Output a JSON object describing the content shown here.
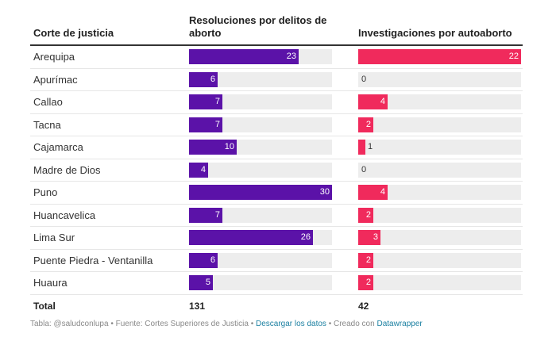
{
  "chart_data": {
    "type": "table",
    "headers": {
      "name": "Corte de justicia",
      "res": "Resoluciones por delitos de aborto",
      "inv": "Investigaciones por autoaborto"
    },
    "scale": {
      "res_max": 30,
      "inv_max": 22
    },
    "colors": {
      "res": "#5b12a8",
      "inv": "#f02a5c",
      "track": "#ededed"
    },
    "rows": [
      {
        "name": "Arequipa",
        "res": 23,
        "inv": 22
      },
      {
        "name": "Apurímac",
        "res": 6,
        "inv": 0
      },
      {
        "name": "Callao",
        "res": 7,
        "inv": 4
      },
      {
        "name": "Tacna",
        "res": 7,
        "inv": 2
      },
      {
        "name": "Cajamarca",
        "res": 10,
        "inv": 1
      },
      {
        "name": "Madre de Dios",
        "res": 4,
        "inv": 0
      },
      {
        "name": "Puno",
        "res": 30,
        "inv": 4
      },
      {
        "name": "Huancavelica",
        "res": 7,
        "inv": 2
      },
      {
        "name": "Lima Sur",
        "res": 26,
        "inv": 3
      },
      {
        "name": "Puente Piedra - Ventanilla",
        "res": 6,
        "inv": 2
      },
      {
        "name": "Huaura",
        "res": 5,
        "inv": 2
      }
    ],
    "total": {
      "label": "Total",
      "res": "131",
      "inv": "42"
    }
  },
  "footer": {
    "source": "Tabla: @saludconlupa • Fuente: Cortes Superiores de Justicia • ",
    "download": "Descargar los datos",
    "created": " • Creado con ",
    "tool": "Datawrapper"
  }
}
